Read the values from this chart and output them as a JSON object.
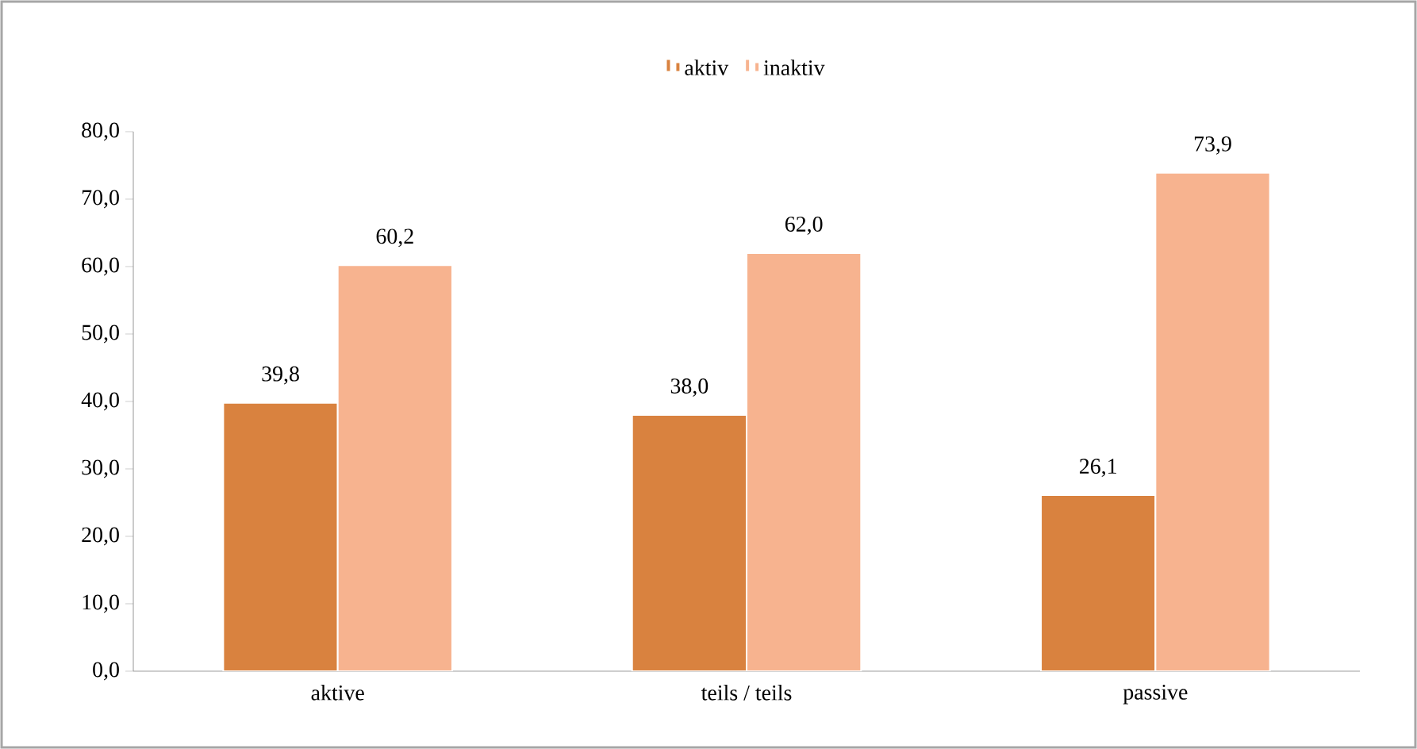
{
  "chart_data": {
    "type": "bar",
    "categories": [
      "aktive",
      "teils / teils",
      "passive"
    ],
    "series": [
      {
        "name": "aktiv",
        "color": "#d9823f",
        "values": [
          39.8,
          38.0,
          26.1
        ],
        "value_labels": [
          "39,8",
          "38,0",
          "26,1"
        ]
      },
      {
        "name": "inaktiv",
        "color": "#f7b38f",
        "values": [
          60.2,
          62.0,
          73.9
        ],
        "value_labels": [
          "60,2",
          "62,0",
          "73,9"
        ]
      }
    ],
    "ylim": [
      0,
      80
    ],
    "yticks": [
      {
        "value": 0,
        "label": "0,0"
      },
      {
        "value": 10,
        "label": "10,0"
      },
      {
        "value": 20,
        "label": "20,0"
      },
      {
        "value": 30,
        "label": "30,0"
      },
      {
        "value": 40,
        "label": "40,0"
      },
      {
        "value": 50,
        "label": "50,0"
      },
      {
        "value": 60,
        "label": "60,0"
      },
      {
        "value": 70,
        "label": "70,0"
      },
      {
        "value": 80,
        "label": "80,0"
      }
    ],
    "legend": "top",
    "grid": false
  }
}
